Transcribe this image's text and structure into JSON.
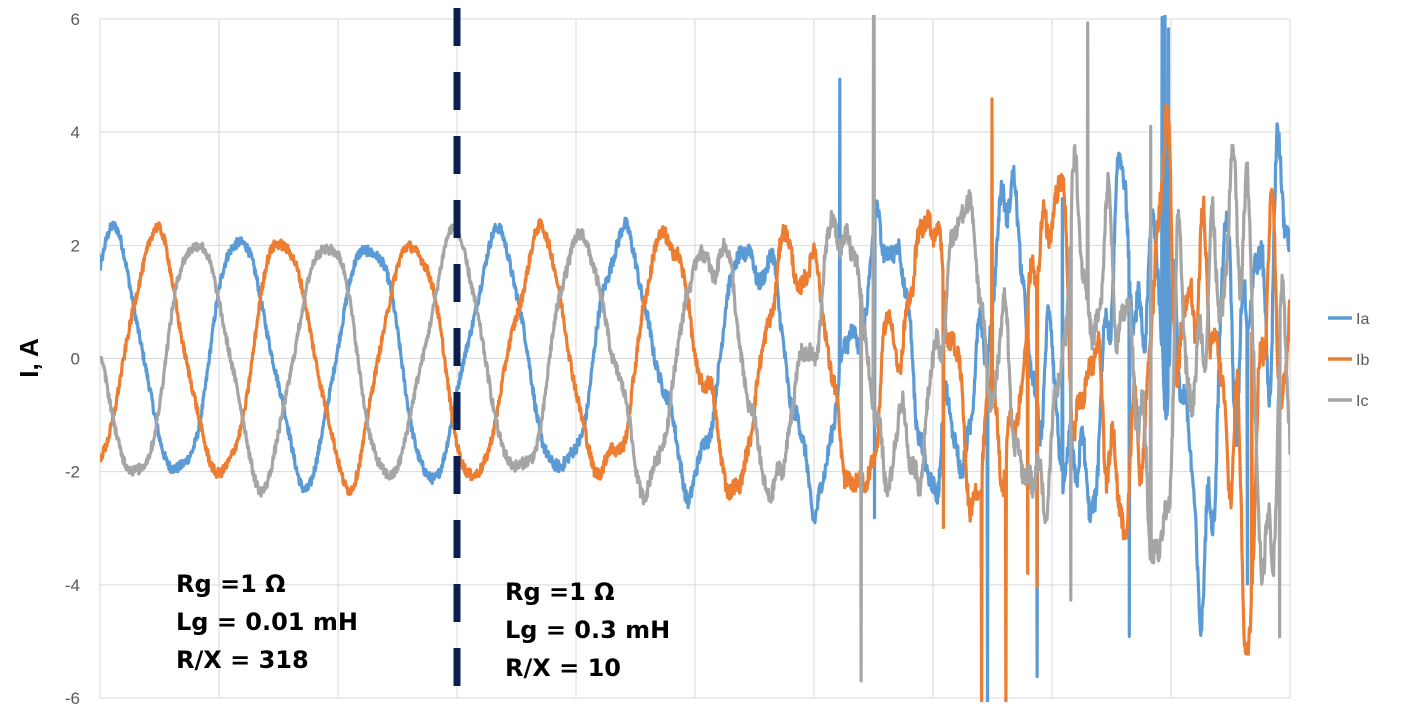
{
  "chart_data": {
    "type": "line",
    "title": "",
    "xlabel": "",
    "ylabel": "I, A",
    "ylim": [
      -6,
      6
    ],
    "yticks": [
      6,
      4,
      2,
      0,
      -2,
      -4,
      -6
    ],
    "xlim": [
      0,
      1190
    ],
    "grid": true,
    "legend": "right",
    "colors": {
      "Ia": "#5B9BD5",
      "Ib": "#ED7D31",
      "Ic": "#A5A5A5",
      "divider": "#0B1F4E"
    },
    "series": [
      {
        "name": "Ia",
        "color": "#5B9BD5"
      },
      {
        "name": "Ib",
        "color": "#ED7D31"
      },
      {
        "name": "Ic",
        "color": "#A5A5A5"
      }
    ],
    "divider_x": 357,
    "annotations": [
      {
        "id": "left",
        "lines": [
          "Rg =1 Ω",
          "Lg = 0.01 mH",
          "R/X = 318"
        ]
      },
      {
        "id": "right",
        "lines": [
          "Rg =1 Ω",
          "Lg = 0.3 mH",
          "R/X = 10"
        ]
      }
    ]
  }
}
